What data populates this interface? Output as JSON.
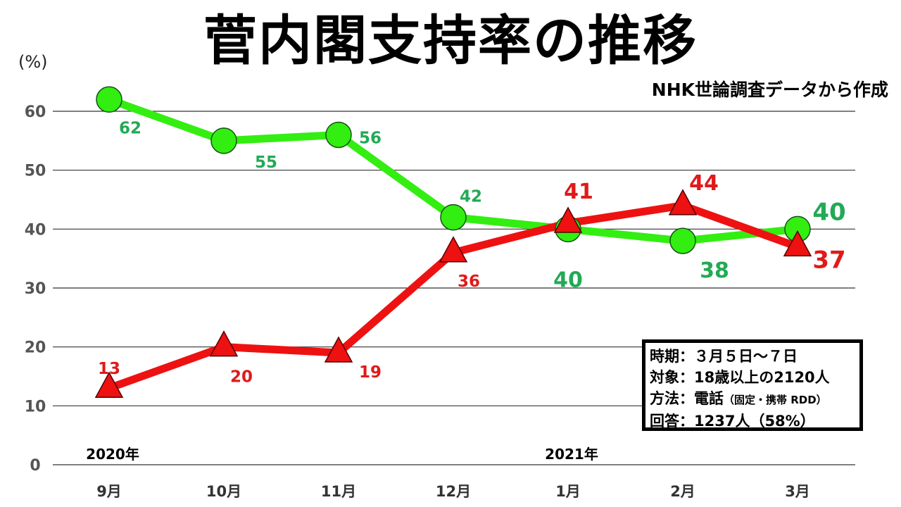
{
  "chart_data": {
    "type": "line",
    "title": "菅内閣支持率の推移",
    "subtitle": "NHK世論調査データから作成",
    "ylabel": "(%)",
    "ylim": [
      0,
      60
    ],
    "yticks": [
      0,
      10,
      20,
      30,
      40,
      50,
      60
    ],
    "grid": true,
    "categories": [
      "9月",
      "10月",
      "11月",
      "12月",
      "1月",
      "2月",
      "3月"
    ],
    "year_labels": [
      {
        "label": "2020年",
        "category": "9月"
      },
      {
        "label": "2021年",
        "category": "1月"
      }
    ],
    "series": [
      {
        "marker": "circle",
        "color": "#33ee11",
        "label_color": "#22aa55",
        "values": [
          62,
          55,
          56,
          42,
          40,
          38,
          40
        ]
      },
      {
        "marker": "triangle",
        "color": "#ee1111",
        "label_color": "#e01a1a",
        "values": [
          13,
          20,
          19,
          36,
          41,
          44,
          37
        ]
      }
    ]
  },
  "info_box": {
    "period": "時期：３月５日～７日",
    "target": "対象：18歳以上の2120人",
    "method": "方法：電話",
    "method_detail": "（固定・携帯 RDD）",
    "response": "回答：1237人（58%）"
  }
}
